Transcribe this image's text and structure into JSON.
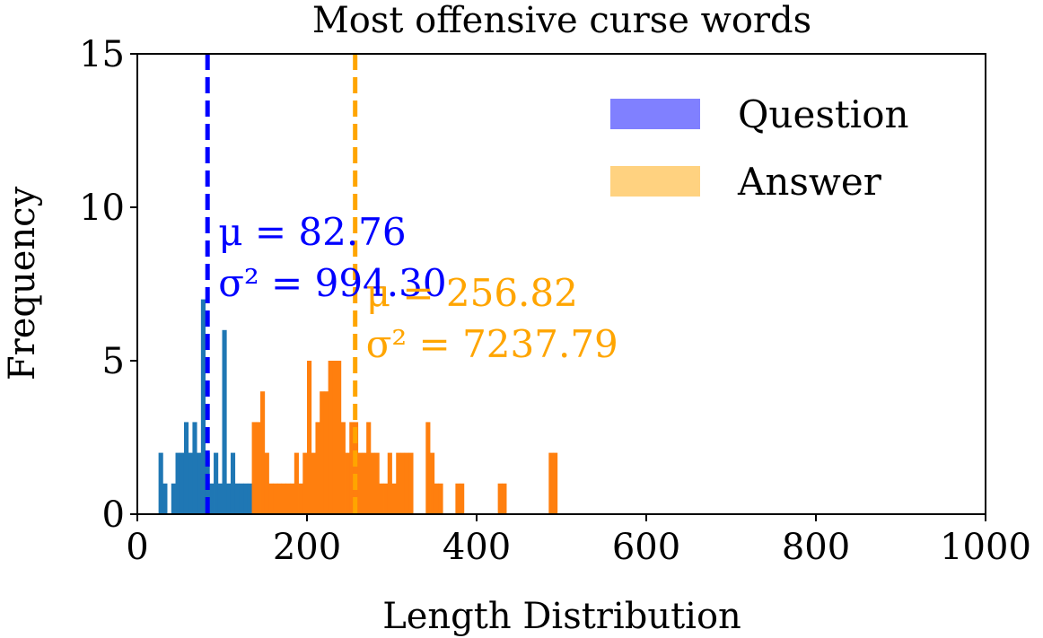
{
  "chart_data": {
    "type": "histogram",
    "title": "Most offensive curse words",
    "xlabel": "Length Distribution",
    "ylabel": "Frequency",
    "xlim": [
      0,
      1000
    ],
    "ylim": [
      0,
      15
    ],
    "xticks": [
      "0",
      "200",
      "400",
      "600",
      "800",
      "1000"
    ],
    "yticks": [
      "0",
      "5",
      "10",
      "15"
    ],
    "grid": false,
    "legend_position": "top-right",
    "legend": [
      {
        "label": "Question",
        "color": "#8080ff"
      },
      {
        "label": "Answer",
        "color": "#ffd280"
      }
    ],
    "bin_width": 5,
    "series": [
      {
        "name": "Question",
        "color": "#1f77b4",
        "bins": [
          {
            "x": 25,
            "y": 2
          },
          {
            "x": 30,
            "y": 1
          },
          {
            "x": 35,
            "y": 0
          },
          {
            "x": 40,
            "y": 1
          },
          {
            "x": 45,
            "y": 2
          },
          {
            "x": 50,
            "y": 2
          },
          {
            "x": 55,
            "y": 3
          },
          {
            "x": 60,
            "y": 2
          },
          {
            "x": 65,
            "y": 3
          },
          {
            "x": 70,
            "y": 2
          },
          {
            "x": 75,
            "y": 7
          },
          {
            "x": 80,
            "y": 2
          },
          {
            "x": 85,
            "y": 1
          },
          {
            "x": 90,
            "y": 2
          },
          {
            "x": 95,
            "y": 1
          },
          {
            "x": 100,
            "y": 6
          },
          {
            "x": 105,
            "y": 1
          },
          {
            "x": 110,
            "y": 2
          },
          {
            "x": 115,
            "y": 1
          },
          {
            "x": 120,
            "y": 1
          },
          {
            "x": 125,
            "y": 1
          },
          {
            "x": 130,
            "y": 1
          }
        ],
        "mean": 82.76,
        "mean_label": "μ = 82.76",
        "variance_label": "σ² = 994.30",
        "mean_line_color": "#0000ff"
      },
      {
        "name": "Answer",
        "color": "#ff7f0e",
        "bins": [
          {
            "x": 135,
            "y": 3
          },
          {
            "x": 140,
            "y": 3
          },
          {
            "x": 145,
            "y": 4
          },
          {
            "x": 150,
            "y": 2
          },
          {
            "x": 155,
            "y": 1
          },
          {
            "x": 160,
            "y": 1
          },
          {
            "x": 165,
            "y": 1
          },
          {
            "x": 170,
            "y": 1
          },
          {
            "x": 175,
            "y": 1
          },
          {
            "x": 180,
            "y": 1
          },
          {
            "x": 185,
            "y": 2
          },
          {
            "x": 190,
            "y": 1
          },
          {
            "x": 195,
            "y": 2
          },
          {
            "x": 200,
            "y": 5
          },
          {
            "x": 205,
            "y": 2
          },
          {
            "x": 210,
            "y": 3
          },
          {
            "x": 215,
            "y": 4
          },
          {
            "x": 220,
            "y": 4
          },
          {
            "x": 225,
            "y": 5
          },
          {
            "x": 230,
            "y": 5
          },
          {
            "x": 235,
            "y": 5
          },
          {
            "x": 240,
            "y": 3
          },
          {
            "x": 245,
            "y": 2
          },
          {
            "x": 250,
            "y": 3
          },
          {
            "x": 255,
            "y": 3
          },
          {
            "x": 260,
            "y": 2
          },
          {
            "x": 265,
            "y": 2
          },
          {
            "x": 270,
            "y": 3
          },
          {
            "x": 275,
            "y": 2
          },
          {
            "x": 280,
            "y": 2
          },
          {
            "x": 285,
            "y": 1
          },
          {
            "x": 290,
            "y": 1
          },
          {
            "x": 295,
            "y": 2
          },
          {
            "x": 300,
            "y": 1
          },
          {
            "x": 305,
            "y": 2
          },
          {
            "x": 310,
            "y": 2
          },
          {
            "x": 315,
            "y": 2
          },
          {
            "x": 320,
            "y": 2
          },
          {
            "x": 340,
            "y": 3
          },
          {
            "x": 345,
            "y": 2
          },
          {
            "x": 350,
            "y": 1
          },
          {
            "x": 355,
            "y": 1
          },
          {
            "x": 375,
            "y": 1
          },
          {
            "x": 380,
            "y": 1
          },
          {
            "x": 425,
            "y": 1
          },
          {
            "x": 430,
            "y": 1
          },
          {
            "x": 485,
            "y": 2
          },
          {
            "x": 490,
            "y": 2
          }
        ],
        "mean": 256.82,
        "mean_label": "μ = 256.82",
        "variance_label": "σ² = 7237.79",
        "mean_line_color": "#ffa500"
      }
    ]
  }
}
